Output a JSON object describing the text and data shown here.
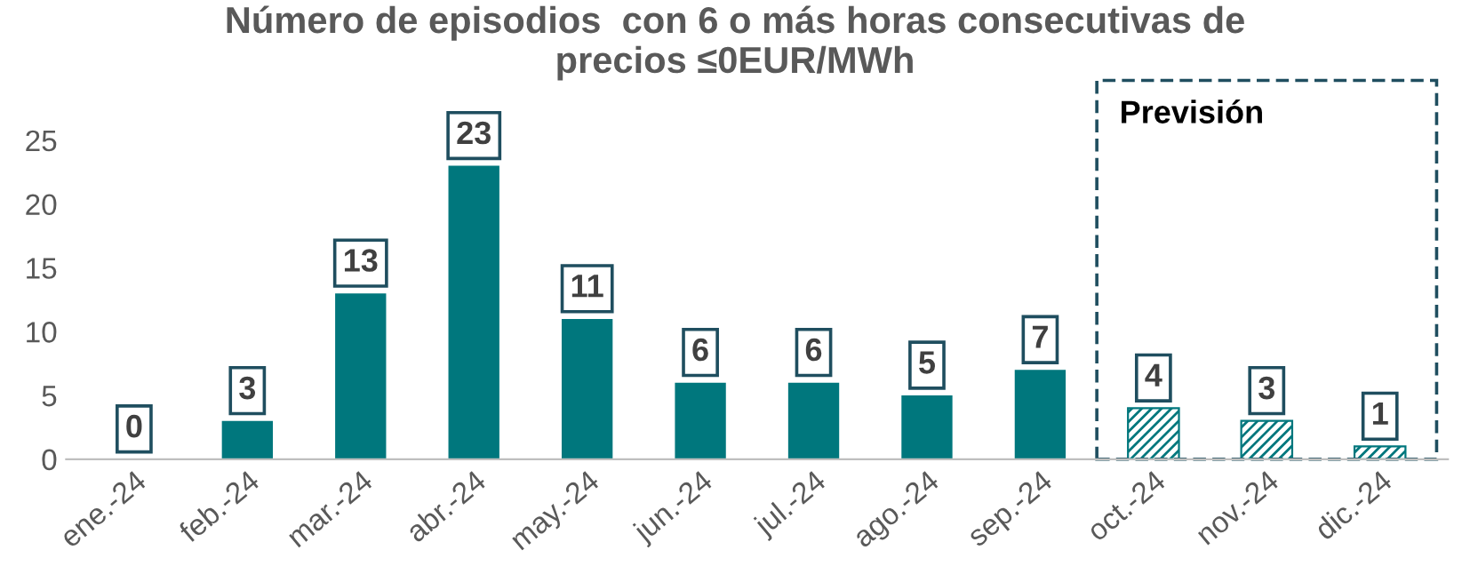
{
  "chart_data": {
    "type": "bar",
    "title": "Número de episodios  con 6 o más horas consecutivas de\nprecios ≤0EUR/MWh",
    "categories": [
      "ene.-24",
      "feb.-24",
      "mar.-24",
      "abr.-24",
      "may.-24",
      "jun.-24",
      "jul.-24",
      "ago.-24",
      "sep.-24",
      "oct.-24",
      "nov.-24",
      "dic.-24"
    ],
    "series": [
      {
        "color": "#00777d",
        "values": [
          0,
          3,
          13,
          23,
          11,
          6,
          6,
          5,
          7,
          null,
          null,
          null
        ]
      },
      {
        "color": "#00777d",
        "values": [
          null,
          null,
          null,
          null,
          null,
          null,
          null,
          null,
          null,
          4,
          3,
          1
        ]
      }
    ],
    "ylim": [
      0,
      27
    ],
    "yticks": [
      0,
      5,
      10,
      15,
      20,
      25
    ],
    "data_labels": true,
    "grid": false,
    "annotations": [
      "Previsión"
    ]
  }
}
